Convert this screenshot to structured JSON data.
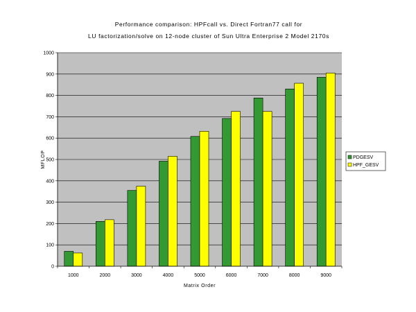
{
  "chart_data": {
    "type": "bar",
    "title": [
      "Performance comparison: HPFcall vs. Direct Fortran77 call for",
      "LU factorization/solve on 12-node cluster of Sun Ultra Enterprise 2 Model 2170s"
    ],
    "xlabel": "Matrix Order",
    "ylabel": "MFLOP",
    "categories": [
      "1000",
      "2000",
      "3000",
      "4000",
      "5000",
      "6000",
      "7000",
      "8000",
      "9000"
    ],
    "series": [
      {
        "name": "PDGESV",
        "color": "#339933",
        "values": [
          70,
          210,
          355,
          492,
          608,
          692,
          788,
          830,
          885
        ]
      },
      {
        "name": "HPF_GESV",
        "color": "#ffff00",
        "values": [
          62,
          218,
          375,
          515,
          632,
          725,
          725,
          857,
          905
        ]
      }
    ],
    "ylim": [
      0,
      1000
    ],
    "yticks": [
      0,
      100,
      200,
      300,
      400,
      500,
      600,
      700,
      800,
      900,
      1000
    ],
    "plot_background": "#c0c0c0",
    "grid": true,
    "legend_position": "right"
  }
}
